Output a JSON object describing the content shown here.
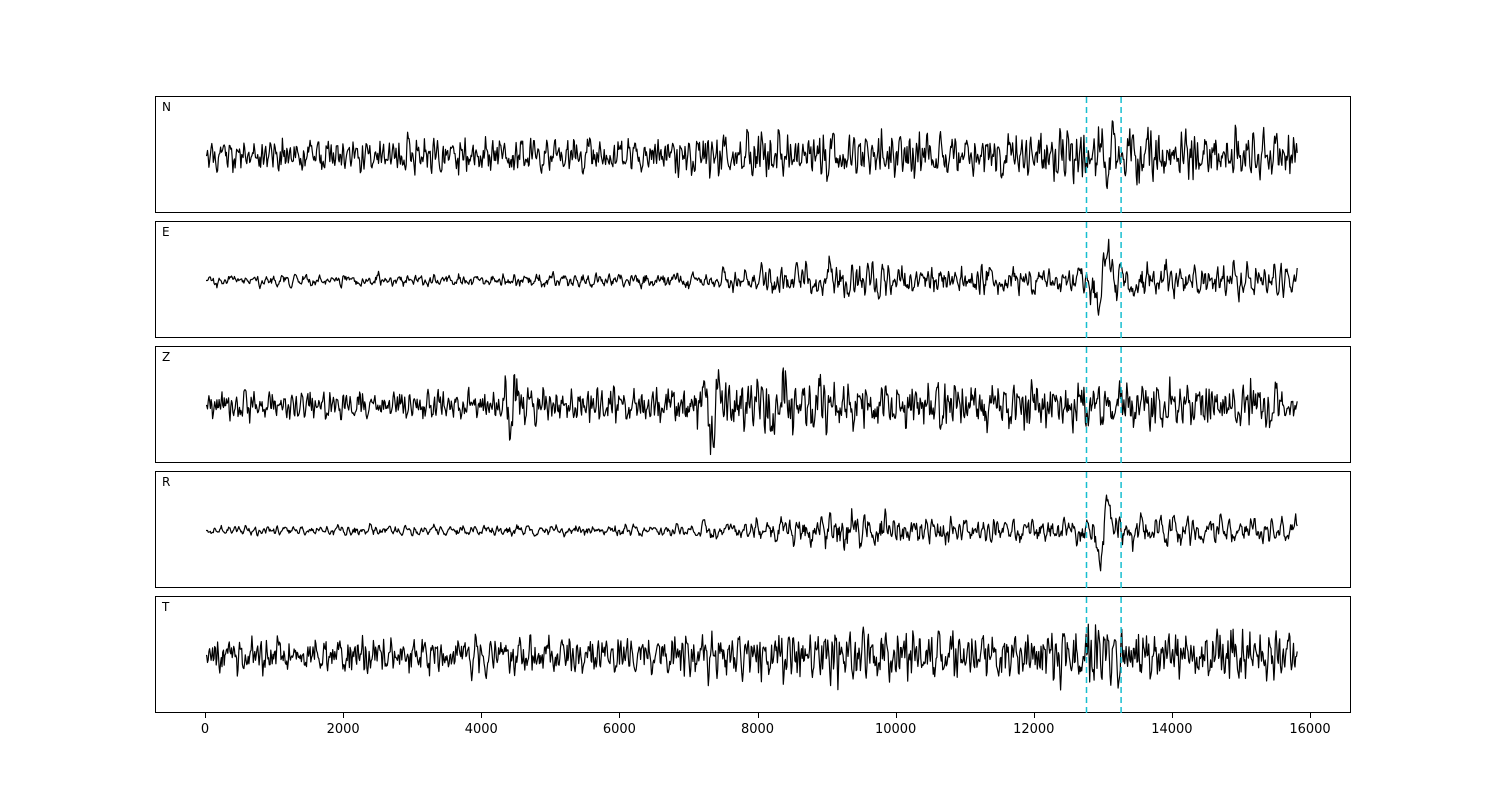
{
  "figure": {
    "background": "#ffffff",
    "trace_color": "#000000",
    "vline_color": "#17becf",
    "border_color": "#000000"
  },
  "chart_data": {
    "type": "line",
    "title": "",
    "xlabel": "",
    "ylabel": "",
    "legend": null,
    "grid": false,
    "x_ticks": [
      0,
      2000,
      4000,
      6000,
      8000,
      10000,
      12000,
      14000,
      16000
    ],
    "x_range": [
      0,
      15800
    ],
    "xlim": [
      -724,
      16594
    ],
    "vlines": [
      12750,
      13250
    ],
    "vline_style": "dashed",
    "panels": [
      {
        "label": "N",
        "seed": 7,
        "smoothing": {
          "fast": 2,
          "slow": 11
        },
        "envelope": [
          [
            0,
            0.45
          ],
          [
            3000,
            0.5
          ],
          [
            5000,
            0.5
          ],
          [
            6500,
            0.55
          ],
          [
            7500,
            0.65
          ],
          [
            9000,
            0.7
          ],
          [
            10500,
            0.65
          ],
          [
            12000,
            0.7
          ],
          [
            13000,
            0.85
          ],
          [
            13600,
            0.8
          ],
          [
            14500,
            0.7
          ],
          [
            15800,
            0.7
          ]
        ],
        "wavelets": [
          {
            "x": 13080,
            "w": 100,
            "period": 230,
            "amp": 26
          }
        ]
      },
      {
        "label": "E",
        "seed": 13,
        "smoothing": {
          "fast": 3,
          "slow": 14
        },
        "envelope": [
          [
            0,
            0.18
          ],
          [
            4000,
            0.18
          ],
          [
            6000,
            0.2
          ],
          [
            7200,
            0.28
          ],
          [
            8000,
            0.38
          ],
          [
            8800,
            0.62
          ],
          [
            9300,
            0.55
          ],
          [
            10000,
            0.5
          ],
          [
            11000,
            0.48
          ],
          [
            12000,
            0.44
          ],
          [
            12700,
            0.45
          ],
          [
            13000,
            0.75
          ],
          [
            13400,
            0.55
          ],
          [
            14200,
            0.48
          ],
          [
            15000,
            0.45
          ],
          [
            15800,
            0.42
          ]
        ],
        "wavelets": [
          {
            "x": 12960,
            "w": 100,
            "period": 280,
            "amp": 40
          }
        ]
      },
      {
        "label": "Z",
        "seed": 42,
        "smoothing": {
          "fast": 2,
          "slow": 12
        },
        "envelope": [
          [
            0,
            0.42
          ],
          [
            3500,
            0.42
          ],
          [
            4250,
            0.45
          ],
          [
            4450,
            0.85
          ],
          [
            4700,
            0.55
          ],
          [
            5500,
            0.48
          ],
          [
            6500,
            0.52
          ],
          [
            7200,
            0.78
          ],
          [
            7700,
            0.85
          ],
          [
            8300,
            0.95
          ],
          [
            9000,
            0.8
          ],
          [
            10000,
            0.72
          ],
          [
            11000,
            0.68
          ],
          [
            12000,
            0.65
          ],
          [
            13000,
            0.65
          ],
          [
            14000,
            0.68
          ],
          [
            15000,
            0.7
          ],
          [
            15800,
            0.6
          ]
        ],
        "wavelets": [
          {
            "x": 4470,
            "w": 120,
            "period": 200,
            "amp": 22
          },
          {
            "x": 7400,
            "w": 160,
            "period": 300,
            "amp": 18
          },
          {
            "x": 8300,
            "w": 150,
            "period": 320,
            "amp": 20
          }
        ]
      },
      {
        "label": "R",
        "seed": 99,
        "smoothing": {
          "fast": 3,
          "slow": 14
        },
        "envelope": [
          [
            0,
            0.14
          ],
          [
            4000,
            0.15
          ],
          [
            6000,
            0.17
          ],
          [
            7000,
            0.2
          ],
          [
            7800,
            0.28
          ],
          [
            8700,
            0.55
          ],
          [
            9200,
            0.6
          ],
          [
            9800,
            0.48
          ],
          [
            10800,
            0.42
          ],
          [
            11800,
            0.38
          ],
          [
            12500,
            0.35
          ],
          [
            13000,
            0.6
          ],
          [
            13500,
            0.5
          ],
          [
            14200,
            0.42
          ],
          [
            15000,
            0.4
          ],
          [
            15800,
            0.35
          ]
        ],
        "wavelets": [
          {
            "x": 13000,
            "w": 110,
            "period": 290,
            "amp": 40
          }
        ]
      },
      {
        "label": "T",
        "seed": 123,
        "smoothing": {
          "fast": 2,
          "slow": 10
        },
        "envelope": [
          [
            0,
            0.5
          ],
          [
            2000,
            0.55
          ],
          [
            4000,
            0.55
          ],
          [
            5500,
            0.52
          ],
          [
            6500,
            0.58
          ],
          [
            7500,
            0.7
          ],
          [
            8300,
            0.75
          ],
          [
            9000,
            0.72
          ],
          [
            10000,
            0.78
          ],
          [
            11000,
            0.7
          ],
          [
            12000,
            0.75
          ],
          [
            12800,
            0.85
          ],
          [
            13400,
            0.8
          ],
          [
            14200,
            0.72
          ],
          [
            15000,
            0.7
          ],
          [
            15800,
            0.72
          ]
        ],
        "wavelets": []
      }
    ]
  }
}
